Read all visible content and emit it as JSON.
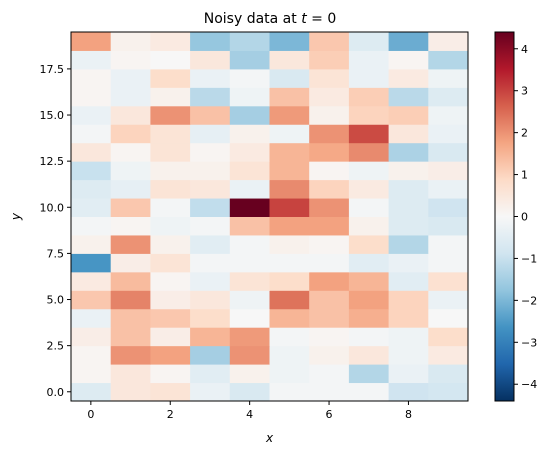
{
  "chart_data": {
    "type": "heatmap",
    "title_prefix": "Noisy data at ",
    "title_var": "t",
    "title_suffix": " = 0",
    "xlabel": "x",
    "ylabel": "y",
    "colormap": "RdBu_r",
    "vmin": -4.4,
    "vmax": 4.4,
    "x_range": [
      -0.5,
      9.5
    ],
    "y_range": [
      -0.5,
      19.5
    ],
    "x_ticks": [
      0,
      2,
      4,
      6,
      8
    ],
    "x_tick_labels": [
      "0",
      "2",
      "4",
      "6",
      "8"
    ],
    "y_ticks": [
      0.0,
      2.5,
      5.0,
      7.5,
      10.0,
      12.5,
      15.0,
      17.5
    ],
    "y_tick_labels": [
      "0.0",
      "2.5",
      "5.0",
      "7.5",
      "10.0",
      "12.5",
      "15.0",
      "17.5"
    ],
    "colorbar_ticks": [
      -4,
      -3,
      -2,
      -1,
      0,
      1,
      2,
      3,
      4
    ],
    "colorbar_tick_labels": [
      "−4",
      "−3",
      "−2",
      "−1",
      "0",
      "1",
      "2",
      "3",
      "4"
    ],
    "grid": false,
    "rows_note": "rows listed from y=0 (bottom) upward; each row has x=0..9",
    "values": [
      [
        -0.6,
        0.5,
        0.6,
        -0.3,
        -0.7,
        -0.1,
        -0.1,
        -0.1,
        -0.9,
        -0.8
      ],
      [
        0.1,
        0.5,
        0.1,
        -0.5,
        0.2,
        -0.2,
        -0.1,
        -1.3,
        -0.3,
        -0.7
      ],
      [
        0.1,
        2.0,
        1.8,
        -1.5,
        2.0,
        -0.2,
        0.2,
        0.5,
        -0.2,
        0.4
      ],
      [
        0.3,
        1.3,
        0.3,
        1.5,
        1.9,
        -0.1,
        0.1,
        -0.1,
        -0.2,
        0.8
      ],
      [
        -0.3,
        1.3,
        1.2,
        0.8,
        0.0,
        1.5,
        1.3,
        1.6,
        1.0,
        0.0
      ],
      [
        1.2,
        2.2,
        0.3,
        0.5,
        -0.2,
        2.4,
        1.3,
        1.8,
        1.0,
        -0.3
      ],
      [
        0.4,
        1.4,
        0.1,
        -0.3,
        0.6,
        0.8,
        1.8,
        1.5,
        -0.5,
        0.7
      ],
      [
        -2.6,
        0.3,
        0.6,
        -0.1,
        -0.1,
        -0.1,
        -0.1,
        -0.5,
        -0.3,
        -0.1
      ],
      [
        0.2,
        2.0,
        0.2,
        -0.5,
        -0.1,
        0.2,
        0.1,
        0.8,
        -1.3,
        -0.1
      ],
      [
        -0.1,
        0.1,
        -0.2,
        -0.1,
        1.3,
        1.8,
        1.8,
        0.2,
        -0.6,
        -0.7
      ],
      [
        -0.5,
        1.2,
        -0.1,
        -1.1,
        4.4,
        3.0,
        2.0,
        -0.1,
        -0.6,
        -0.9
      ],
      [
        -0.6,
        -0.4,
        0.6,
        0.5,
        -0.3,
        2.1,
        1.0,
        0.4,
        -0.6,
        -0.3
      ],
      [
        -1.0,
        -0.2,
        0.2,
        0.2,
        0.6,
        1.5,
        0.1,
        -0.2,
        0.2,
        0.3
      ],
      [
        0.5,
        0.1,
        0.6,
        0.1,
        0.4,
        1.5,
        1.7,
        2.1,
        -1.4,
        -0.7
      ],
      [
        -0.1,
        1.0,
        0.6,
        -0.4,
        0.2,
        -0.2,
        2.0,
        2.9,
        0.5,
        -0.3
      ],
      [
        -0.3,
        0.5,
        2.0,
        1.3,
        -1.5,
        1.9,
        0.2,
        1.0,
        1.1,
        -0.2
      ],
      [
        0.1,
        -0.3,
        0.2,
        -1.2,
        -0.2,
        1.3,
        0.4,
        1.1,
        -1.2,
        -0.6
      ],
      [
        0.1,
        -0.3,
        0.8,
        -0.3,
        -0.1,
        -0.7,
        0.6,
        -0.3,
        0.4,
        -0.2
      ],
      [
        -0.3,
        0.1,
        0.0,
        0.5,
        -1.5,
        0.5,
        1.1,
        -0.3,
        0.1,
        -1.3
      ],
      [
        1.8,
        0.2,
        0.4,
        -1.7,
        -1.3,
        -2.0,
        1.2,
        -0.6,
        -2.2,
        0.3
      ]
    ]
  }
}
